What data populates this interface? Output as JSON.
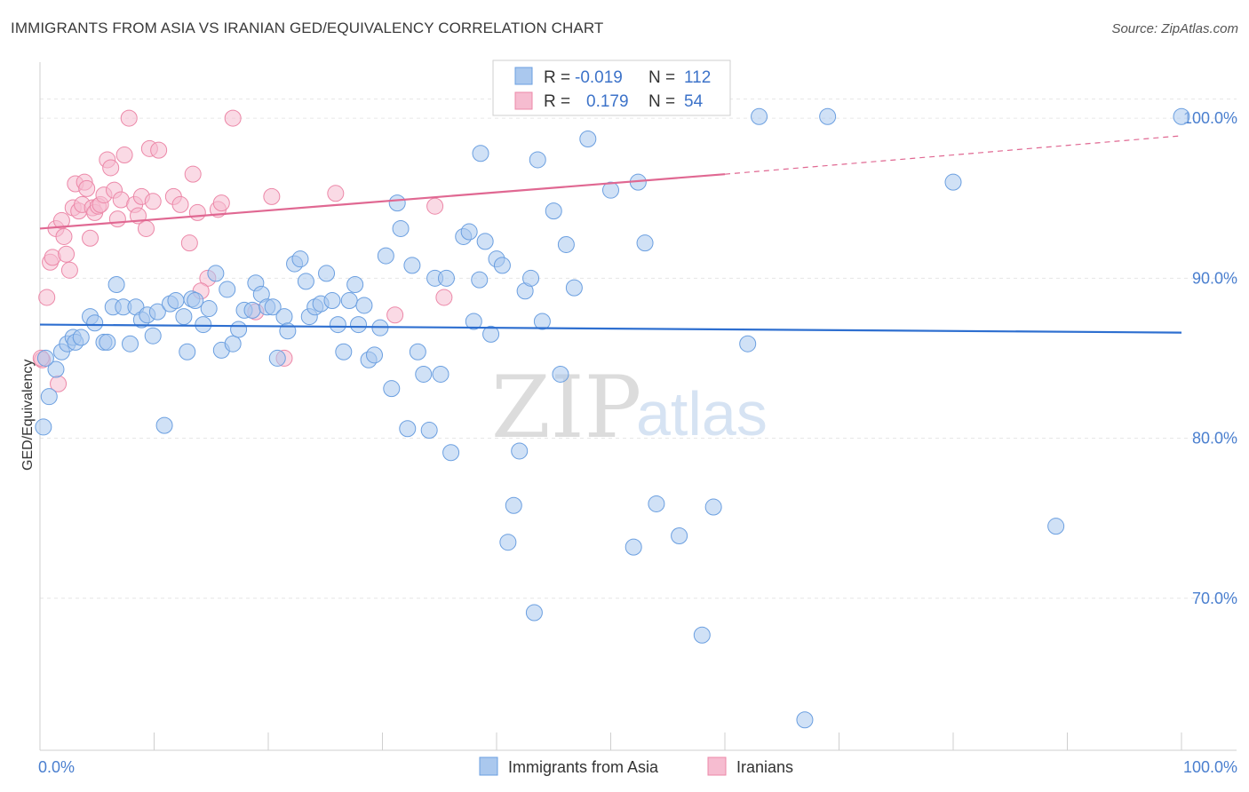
{
  "header": {
    "title": "IMMIGRANTS FROM ASIA VS IRANIAN GED/EQUIVALENCY CORRELATION CHART",
    "source": "Source: ZipAtlas.com"
  },
  "watermark": {
    "part1": "ZIP",
    "part2": "atlas"
  },
  "colors": {
    "blue_fill": "#aac8ee",
    "blue_stroke": "#6b9fe0",
    "blue_line": "#2e6fd0",
    "pink_fill": "#f6bcd0",
    "pink_stroke": "#ec88a8",
    "pink_line": "#e06892",
    "axis_text": "#4a7fcf",
    "grid": "#e6e6e6"
  },
  "legend": {
    "rows": [
      {
        "r_label": "R =",
        "r_value": "-0.019",
        "n_label": "N =",
        "n_value": "112"
      },
      {
        "r_label": "R =",
        "r_value": "0.179",
        "n_label": "N =",
        "n_value": "54"
      }
    ]
  },
  "bottom_legend": {
    "series1": "Immigrants from Asia",
    "series2": "Iranians"
  },
  "chart_data": {
    "type": "scatter",
    "title": "IMMIGRANTS FROM ASIA VS IRANIAN GED/EQUIVALENCY CORRELATION CHART",
    "xlabel": "",
    "ylabel": "GED/Equivalency",
    "xlim": [
      0,
      100
    ],
    "ylim": [
      60.5,
      103.5
    ],
    "x_tick_labels": [
      "0.0%",
      "100.0%"
    ],
    "y_ticks": [
      70,
      80,
      90,
      100
    ],
    "y_tick_labels": [
      "70.0%",
      "80.0%",
      "90.0%",
      "100.0%"
    ],
    "series": [
      {
        "name": "Immigrants from Asia",
        "R": -0.019,
        "N": 112,
        "trend": {
          "x0": 0,
          "y0": 87.1,
          "x1": 100,
          "y1": 86.6
        },
        "points": [
          [
            0.3,
            80.7
          ],
          [
            0.8,
            82.6
          ],
          [
            1.4,
            84.3
          ],
          [
            1.9,
            85.4
          ],
          [
            2.4,
            85.9
          ],
          [
            2.9,
            86.3
          ],
          [
            3.1,
            86.0
          ],
          [
            3.6,
            86.3
          ],
          [
            4.4,
            87.6
          ],
          [
            4.8,
            87.2
          ],
          [
            5.6,
            86.0
          ],
          [
            5.9,
            86.0
          ],
          [
            6.7,
            89.6
          ],
          [
            6.4,
            88.2
          ],
          [
            7.3,
            88.2
          ],
          [
            7.9,
            85.9
          ],
          [
            8.4,
            88.2
          ],
          [
            8.9,
            87.4
          ],
          [
            9.4,
            87.7
          ],
          [
            9.9,
            86.4
          ],
          [
            10.3,
            87.9
          ],
          [
            10.9,
            80.8
          ],
          [
            11.4,
            88.4
          ],
          [
            11.9,
            88.6
          ],
          [
            12.6,
            87.6
          ],
          [
            12.9,
            85.4
          ],
          [
            13.3,
            88.7
          ],
          [
            13.6,
            88.6
          ],
          [
            14.3,
            87.1
          ],
          [
            14.8,
            88.1
          ],
          [
            15.4,
            90.3
          ],
          [
            15.9,
            85.5
          ],
          [
            16.4,
            89.3
          ],
          [
            16.9,
            85.9
          ],
          [
            17.4,
            86.8
          ],
          [
            17.9,
            88.0
          ],
          [
            18.6,
            88.0
          ],
          [
            18.9,
            89.7
          ],
          [
            19.4,
            89.0
          ],
          [
            19.9,
            88.2
          ],
          [
            20.4,
            88.2
          ],
          [
            20.8,
            85.0
          ],
          [
            21.4,
            87.6
          ],
          [
            21.7,
            86.7
          ],
          [
            22.3,
            90.9
          ],
          [
            22.8,
            91.2
          ],
          [
            23.3,
            89.8
          ],
          [
            23.6,
            87.6
          ],
          [
            24.1,
            88.2
          ],
          [
            24.6,
            88.4
          ],
          [
            25.1,
            90.3
          ],
          [
            25.6,
            88.6
          ],
          [
            26.1,
            87.1
          ],
          [
            26.6,
            85.4
          ],
          [
            27.1,
            88.6
          ],
          [
            27.6,
            89.6
          ],
          [
            27.9,
            87.1
          ],
          [
            28.4,
            88.3
          ],
          [
            28.8,
            84.9
          ],
          [
            29.3,
            85.2
          ],
          [
            29.8,
            86.9
          ],
          [
            30.3,
            91.4
          ],
          [
            30.8,
            83.1
          ],
          [
            31.3,
            94.7
          ],
          [
            31.6,
            93.1
          ],
          [
            32.2,
            80.6
          ],
          [
            32.6,
            90.8
          ],
          [
            33.1,
            85.4
          ],
          [
            33.6,
            84.0
          ],
          [
            34.1,
            80.5
          ],
          [
            34.6,
            90.0
          ],
          [
            35.1,
            84.0
          ],
          [
            35.6,
            90.0
          ],
          [
            36.0,
            79.1
          ],
          [
            37.1,
            92.6
          ],
          [
            37.6,
            92.9
          ],
          [
            38.0,
            87.3
          ],
          [
            38.5,
            89.9
          ],
          [
            39.0,
            92.3
          ],
          [
            39.5,
            86.5
          ],
          [
            40.0,
            91.2
          ],
          [
            40.5,
            90.8
          ],
          [
            41.0,
            73.5
          ],
          [
            41.5,
            75.8
          ],
          [
            42.0,
            79.2
          ],
          [
            42.5,
            89.2
          ],
          [
            43.0,
            90.0
          ],
          [
            43.3,
            69.1
          ],
          [
            43.6,
            97.4
          ],
          [
            44.0,
            87.3
          ],
          [
            45.0,
            94.2
          ],
          [
            45.6,
            84.0
          ],
          [
            46.1,
            92.1
          ],
          [
            46.8,
            89.4
          ],
          [
            48.0,
            98.7
          ],
          [
            50.0,
            95.5
          ],
          [
            52.0,
            73.2
          ],
          [
            52.4,
            96.0
          ],
          [
            53.0,
            92.2
          ],
          [
            54.0,
            75.9
          ],
          [
            56.0,
            73.9
          ],
          [
            58.0,
            67.7
          ],
          [
            59.0,
            75.7
          ],
          [
            62.0,
            85.9
          ],
          [
            63.0,
            100.1
          ],
          [
            67.0,
            62.4
          ],
          [
            69.0,
            100.1
          ],
          [
            80.0,
            96.0
          ],
          [
            89.0,
            74.5
          ],
          [
            100.0,
            100.1
          ],
          [
            38.6,
            97.8
          ],
          [
            0.5,
            85.0
          ]
        ]
      },
      {
        "name": "Iranians",
        "R": 0.179,
        "N": 54,
        "trend": {
          "x0": 0,
          "y0": 93.1,
          "x1": 60,
          "y1": 96.5
        },
        "trend_dashed": {
          "x0": 60,
          "y0": 96.5,
          "x1": 100,
          "y1": 98.9
        },
        "points": [
          [
            0.2,
            84.9
          ],
          [
            0.6,
            88.8
          ],
          [
            0.9,
            91.0
          ],
          [
            1.1,
            91.3
          ],
          [
            1.4,
            93.1
          ],
          [
            1.6,
            83.4
          ],
          [
            1.9,
            93.6
          ],
          [
            2.1,
            92.6
          ],
          [
            2.3,
            91.5
          ],
          [
            2.6,
            90.5
          ],
          [
            2.9,
            94.4
          ],
          [
            3.1,
            95.9
          ],
          [
            3.4,
            94.2
          ],
          [
            3.7,
            94.6
          ],
          [
            3.9,
            96.0
          ],
          [
            4.1,
            95.6
          ],
          [
            4.4,
            92.5
          ],
          [
            4.6,
            94.4
          ],
          [
            4.8,
            94.1
          ],
          [
            5.1,
            94.5
          ],
          [
            5.3,
            94.6
          ],
          [
            5.6,
            95.2
          ],
          [
            5.9,
            97.4
          ],
          [
            6.2,
            96.9
          ],
          [
            6.5,
            95.5
          ],
          [
            6.8,
            93.7
          ],
          [
            7.1,
            94.9
          ],
          [
            7.4,
            97.7
          ],
          [
            7.8,
            100.0
          ],
          [
            8.3,
            94.6
          ],
          [
            8.6,
            93.9
          ],
          [
            8.9,
            95.1
          ],
          [
            9.3,
            93.1
          ],
          [
            9.6,
            98.1
          ],
          [
            9.9,
            94.8
          ],
          [
            10.4,
            98.0
          ],
          [
            11.7,
            95.1
          ],
          [
            12.3,
            94.6
          ],
          [
            13.1,
            92.2
          ],
          [
            13.4,
            96.5
          ],
          [
            13.8,
            94.1
          ],
          [
            14.7,
            90.0
          ],
          [
            15.6,
            94.3
          ],
          [
            15.9,
            94.7
          ],
          [
            16.9,
            100.0
          ],
          [
            18.9,
            87.9
          ],
          [
            20.3,
            95.1
          ],
          [
            21.4,
            85.0
          ],
          [
            25.9,
            95.3
          ],
          [
            31.1,
            87.7
          ],
          [
            34.6,
            94.5
          ],
          [
            35.4,
            88.8
          ],
          [
            14.1,
            89.2
          ],
          [
            0.1,
            85.0
          ]
        ]
      }
    ]
  }
}
